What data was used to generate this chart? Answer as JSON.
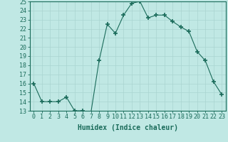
{
  "x": [
    0,
    1,
    2,
    3,
    4,
    5,
    6,
    7,
    8,
    9,
    10,
    11,
    12,
    13,
    14,
    15,
    16,
    17,
    18,
    19,
    20,
    21,
    22,
    23
  ],
  "y": [
    16.0,
    14.0,
    14.0,
    14.0,
    14.5,
    13.0,
    13.0,
    12.8,
    18.5,
    22.5,
    21.5,
    23.5,
    24.8,
    25.0,
    23.2,
    23.5,
    23.5,
    22.8,
    22.2,
    21.7,
    19.5,
    18.5,
    16.2,
    14.8
  ],
  "ylim": [
    13,
    25
  ],
  "yticks": [
    13,
    14,
    15,
    16,
    17,
    18,
    19,
    20,
    21,
    22,
    23,
    24,
    25
  ],
  "xticks": [
    0,
    1,
    2,
    3,
    4,
    5,
    6,
    7,
    8,
    9,
    10,
    11,
    12,
    13,
    14,
    15,
    16,
    17,
    18,
    19,
    20,
    21,
    22,
    23
  ],
  "xlabel": "Humidex (Indice chaleur)",
  "line_color": "#1a6b5a",
  "marker_color": "#1a6b5a",
  "bg_color": "#c0e8e4",
  "grid_color": "#aad4d0",
  "title_fontsize": 7,
  "xlabel_fontsize": 7,
  "tick_fontsize": 6
}
